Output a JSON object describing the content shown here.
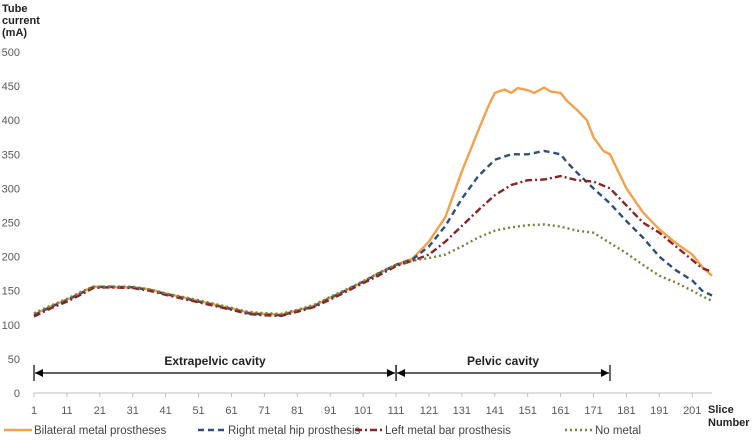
{
  "chart_data": {
    "type": "line",
    "ylabel_lines": [
      "Tube",
      "current",
      "(mA)"
    ],
    "xlabel_lines": [
      "Slice",
      "Number"
    ],
    "ylim": [
      0,
      500
    ],
    "yticks": [
      0,
      50,
      100,
      150,
      200,
      250,
      300,
      350,
      400,
      450,
      500
    ],
    "xlim": [
      1,
      207
    ],
    "xticks": [
      1,
      11,
      21,
      31,
      41,
      51,
      61,
      71,
      81,
      91,
      101,
      111,
      121,
      131,
      141,
      151,
      161,
      171,
      181,
      191,
      201
    ],
    "grid": false,
    "legend_position": "bottom",
    "regions": [
      {
        "label": "Extrapelvic cavity",
        "x_start": 1,
        "x_end": 111
      },
      {
        "label": "Pelvic cavity",
        "x_start": 111,
        "x_end": 176
      }
    ],
    "series": [
      {
        "name": "Bilateral metal prostheses",
        "color": "#F4A14D",
        "dash": "solid",
        "points": [
          [
            1,
            115
          ],
          [
            6,
            127
          ],
          [
            11,
            137
          ],
          [
            16,
            149
          ],
          [
            19,
            156
          ],
          [
            23,
            155
          ],
          [
            31,
            155
          ],
          [
            36,
            152
          ],
          [
            41,
            146
          ],
          [
            51,
            135
          ],
          [
            61,
            124
          ],
          [
            66,
            118
          ],
          [
            71,
            116
          ],
          [
            76,
            115
          ],
          [
            81,
            121
          ],
          [
            86,
            128
          ],
          [
            91,
            140
          ],
          [
            96,
            151
          ],
          [
            101,
            163
          ],
          [
            106,
            176
          ],
          [
            111,
            188
          ],
          [
            116,
            197
          ],
          [
            121,
            222
          ],
          [
            126,
            258
          ],
          [
            131,
            325
          ],
          [
            136,
            385
          ],
          [
            139,
            420
          ],
          [
            141,
            440
          ],
          [
            144,
            445
          ],
          [
            146,
            440
          ],
          [
            148,
            447
          ],
          [
            151,
            444
          ],
          [
            153,
            440
          ],
          [
            156,
            448
          ],
          [
            158,
            442
          ],
          [
            161,
            440
          ],
          [
            163,
            428
          ],
          [
            166,
            415
          ],
          [
            169,
            400
          ],
          [
            171,
            375
          ],
          [
            174,
            355
          ],
          [
            176,
            350
          ],
          [
            179,
            320
          ],
          [
            181,
            300
          ],
          [
            186,
            265
          ],
          [
            191,
            240
          ],
          [
            196,
            220
          ],
          [
            201,
            203
          ],
          [
            204,
            185
          ],
          [
            207,
            172
          ]
        ]
      },
      {
        "name": "Right metal hip prosthesis",
        "color": "#2E4F7C",
        "dash": "6,4",
        "points": [
          [
            1,
            114
          ],
          [
            6,
            126
          ],
          [
            11,
            136
          ],
          [
            16,
            148
          ],
          [
            19,
            155
          ],
          [
            23,
            156
          ],
          [
            31,
            155
          ],
          [
            36,
            151
          ],
          [
            41,
            145
          ],
          [
            51,
            134
          ],
          [
            61,
            123
          ],
          [
            66,
            117
          ],
          [
            71,
            115
          ],
          [
            76,
            114
          ],
          [
            81,
            120
          ],
          [
            86,
            127
          ],
          [
            91,
            139
          ],
          [
            96,
            151
          ],
          [
            101,
            163
          ],
          [
            106,
            176
          ],
          [
            111,
            188
          ],
          [
            116,
            196
          ],
          [
            121,
            215
          ],
          [
            126,
            245
          ],
          [
            131,
            285
          ],
          [
            136,
            318
          ],
          [
            141,
            342
          ],
          [
            146,
            350
          ],
          [
            151,
            350
          ],
          [
            156,
            355
          ],
          [
            161,
            350
          ],
          [
            163,
            338
          ],
          [
            166,
            323
          ],
          [
            171,
            300
          ],
          [
            176,
            278
          ],
          [
            181,
            252
          ],
          [
            186,
            228
          ],
          [
            191,
            200
          ],
          [
            196,
            180
          ],
          [
            201,
            165
          ],
          [
            204,
            150
          ],
          [
            207,
            143
          ]
        ]
      },
      {
        "name": "Left metal bar prosthesis",
        "color": "#8B2323",
        "dash": "7,3,2,3",
        "points": [
          [
            1,
            112
          ],
          [
            6,
            124
          ],
          [
            11,
            134
          ],
          [
            16,
            146
          ],
          [
            19,
            154
          ],
          [
            23,
            155
          ],
          [
            31,
            154
          ],
          [
            36,
            150
          ],
          [
            41,
            144
          ],
          [
            51,
            133
          ],
          [
            61,
            122
          ],
          [
            66,
            116
          ],
          [
            71,
            114
          ],
          [
            76,
            113
          ],
          [
            81,
            119
          ],
          [
            86,
            126
          ],
          [
            91,
            137
          ],
          [
            96,
            149
          ],
          [
            101,
            161
          ],
          [
            106,
            173
          ],
          [
            111,
            186
          ],
          [
            116,
            194
          ],
          [
            121,
            203
          ],
          [
            126,
            222
          ],
          [
            131,
            245
          ],
          [
            136,
            268
          ],
          [
            141,
            290
          ],
          [
            146,
            305
          ],
          [
            151,
            312
          ],
          [
            156,
            313
          ],
          [
            161,
            318
          ],
          [
            166,
            312
          ],
          [
            171,
            310
          ],
          [
            176,
            300
          ],
          [
            181,
            275
          ],
          [
            186,
            250
          ],
          [
            191,
            235
          ],
          [
            196,
            215
          ],
          [
            201,
            195
          ],
          [
            204,
            183
          ],
          [
            207,
            178
          ]
        ]
      },
      {
        "name": "No metal",
        "color": "#76823A",
        "dash": "2,3",
        "points": [
          [
            1,
            117
          ],
          [
            6,
            128
          ],
          [
            11,
            138
          ],
          [
            16,
            150
          ],
          [
            19,
            156
          ],
          [
            23,
            156
          ],
          [
            31,
            156
          ],
          [
            36,
            152
          ],
          [
            41,
            146
          ],
          [
            51,
            136
          ],
          [
            61,
            125
          ],
          [
            66,
            119
          ],
          [
            71,
            117
          ],
          [
            76,
            116
          ],
          [
            81,
            122
          ],
          [
            86,
            129
          ],
          [
            91,
            141
          ],
          [
            96,
            152
          ],
          [
            101,
            164
          ],
          [
            106,
            177
          ],
          [
            111,
            188
          ],
          [
            116,
            194
          ],
          [
            121,
            198
          ],
          [
            126,
            203
          ],
          [
            131,
            215
          ],
          [
            136,
            228
          ],
          [
            141,
            238
          ],
          [
            146,
            243
          ],
          [
            151,
            246
          ],
          [
            156,
            247
          ],
          [
            161,
            244
          ],
          [
            166,
            238
          ],
          [
            171,
            235
          ],
          [
            176,
            220
          ],
          [
            181,
            205
          ],
          [
            186,
            188
          ],
          [
            191,
            172
          ],
          [
            196,
            162
          ],
          [
            201,
            150
          ],
          [
            204,
            142
          ],
          [
            207,
            135
          ]
        ]
      }
    ]
  }
}
